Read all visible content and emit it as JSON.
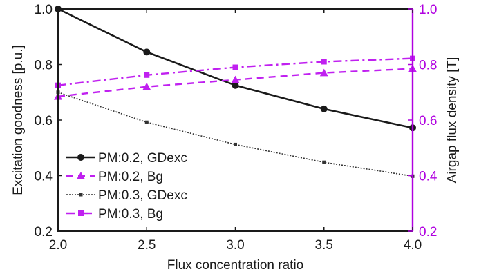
{
  "colors": {
    "left_axis": "#1a1a1a",
    "right_axis": "#b000e0",
    "series_black": "#1a1a1a",
    "series_gray": "#333333",
    "series_magenta": "#c020f0"
  },
  "chart_data": {
    "type": "line",
    "xlabel": "Flux concentration ratio",
    "ylabel": "Excitation goodness [p.u.]",
    "y2label": "Airgap flux density [T]",
    "xlim": [
      2.0,
      4.0
    ],
    "ylim": [
      0.2,
      1.0
    ],
    "y2lim": [
      0.2,
      1.0
    ],
    "x_ticks": [
      "2.0",
      "2.5",
      "3.0",
      "3.5",
      "4.0"
    ],
    "y_ticks": [
      "0.2",
      "0.4",
      "0.6",
      "0.8",
      "1.0"
    ],
    "y2_ticks": [
      "0.2",
      "0.4",
      "0.6",
      "0.8",
      "1.0"
    ],
    "grid": false,
    "legend_position": "bottom-left",
    "x": [
      2.0,
      2.5,
      3.0,
      3.5,
      4.0
    ],
    "series": [
      {
        "name": "PM:0.2, GDexc",
        "axis": "left",
        "values": [
          1.0,
          0.845,
          0.725,
          0.64,
          0.572
        ],
        "color": "#1a1a1a",
        "dash": "",
        "marker": "circle",
        "width": 2.6
      },
      {
        "name": "PM:0.2, Bg",
        "axis": "right",
        "values": [
          0.685,
          0.72,
          0.745,
          0.77,
          0.785
        ],
        "color": "#c020f0",
        "dash": "10,7",
        "marker": "triangle",
        "width": 2.4
      },
      {
        "name": "PM:0.3, GDexc",
        "axis": "left",
        "values": [
          0.7,
          0.592,
          0.512,
          0.448,
          0.398
        ],
        "color": "#333333",
        "dash": "2,2",
        "marker": "square-small",
        "width": 1.6
      },
      {
        "name": "PM:0.3, Bg",
        "axis": "right",
        "values": [
          0.725,
          0.762,
          0.79,
          0.81,
          0.822
        ],
        "color": "#c020f0",
        "dash": "12,5,3,5",
        "marker": "square",
        "width": 2.4
      }
    ]
  }
}
